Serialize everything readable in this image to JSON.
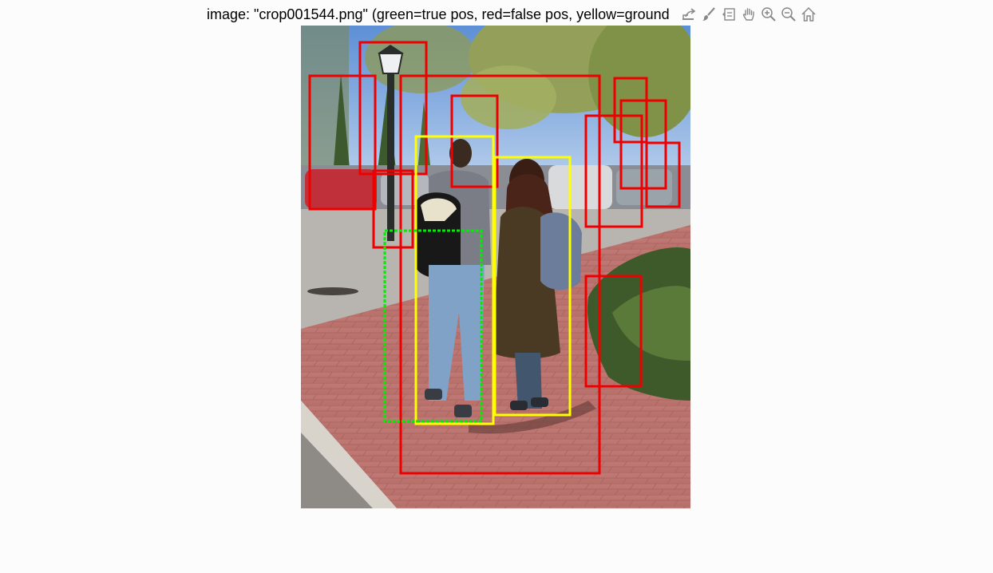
{
  "figure": {
    "title": "image: \"crop001544.png\" (green=true pos, red=false pos, yellow=ground"
  },
  "toolbar": {
    "tools": [
      {
        "name": "export-icon",
        "label": "Export"
      },
      {
        "name": "brush-icon",
        "label": "Brush"
      },
      {
        "name": "data-tips-icon",
        "label": "Data Tips"
      },
      {
        "name": "pan-icon",
        "label": "Pan"
      },
      {
        "name": "zoom-in-icon",
        "label": "Zoom In"
      },
      {
        "name": "zoom-out-icon",
        "label": "Zoom Out"
      },
      {
        "name": "home-icon",
        "label": "Restore View"
      }
    ]
  },
  "colors": {
    "true_pos": "#00ee00",
    "false_pos": "#ee0000",
    "ground_truth": "#ffff00"
  }
}
